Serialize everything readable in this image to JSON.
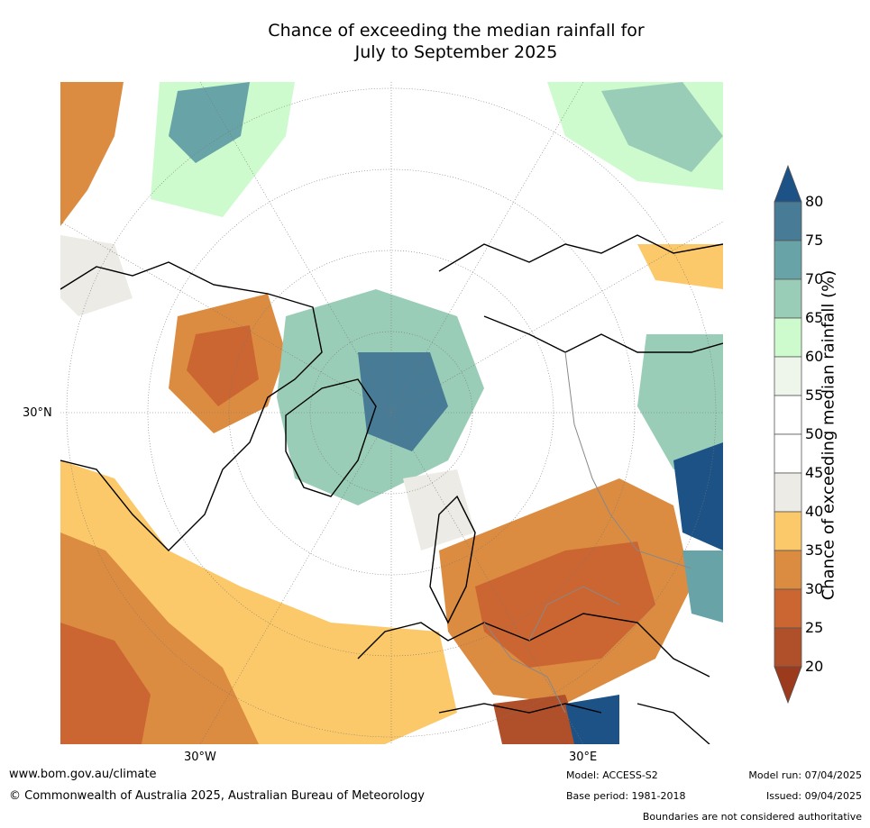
{
  "title_line1": "Chance of exceeding the median rainfall for",
  "title_line2": "July to September 2025",
  "map": {
    "latitude_label": "30°N",
    "longitude_labels": [
      "30°W",
      "30°E"
    ]
  },
  "colorbar": {
    "label": "Chance of exceeding median rainfall (%)",
    "ticks": [
      "80",
      "75",
      "70",
      "65",
      "60",
      "55",
      "50",
      "45",
      "40",
      "35",
      "30",
      "25",
      "20"
    ],
    "colors": [
      "#9c3a1d",
      "#b0502a",
      "#cb6632",
      "#dc8c41",
      "#fcc96a",
      "#edebe6",
      "#ffffff",
      "#ffffff",
      "#eef6ec",
      "#cdfbcd",
      "#9acdb7",
      "#68a4a7",
      "#477b96",
      "#1d5287"
    ],
    "extend": "both"
  },
  "footer": {
    "website": "www.bom.gov.au/climate",
    "copyright": "© Commonwealth of Australia 2025, Australian Bureau of Meteorology",
    "model": "Model: ACCESS-S2",
    "base_period": "Base period: 1981-2018",
    "model_run": "Model run: 07/04/2025",
    "issued": "Issued: 09/04/2025",
    "disclaimer": "Boundaries are not considered authoritative"
  }
}
